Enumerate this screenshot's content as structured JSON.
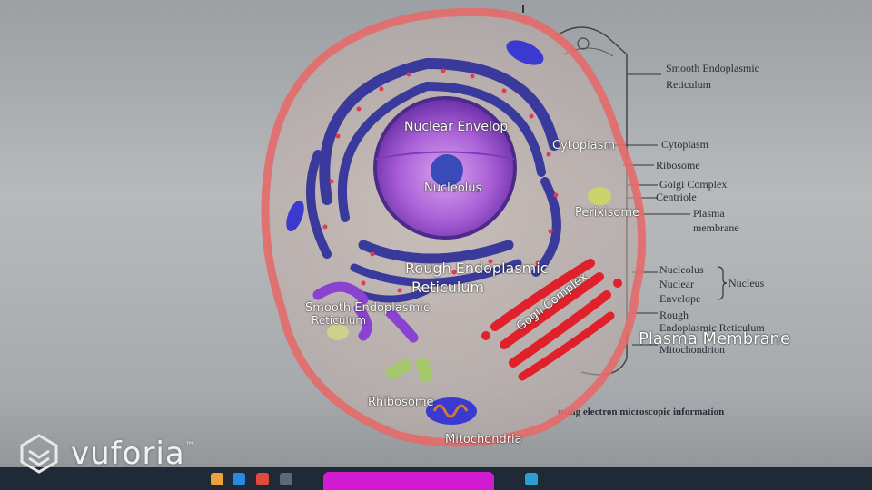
{
  "textbook": {
    "labels": [
      "Smooth Endoplasmic",
      "Reticulum",
      "Cytoplasm",
      "Ribosome",
      "Golgi Complex",
      "Centriole",
      "Plasma",
      "membrane",
      "Nucleolus",
      "Nuclear",
      "Envelope",
      "Nucleus",
      "Rough",
      "Endoplasmic Reticulum",
      "Mitochondrion"
    ],
    "caption": "using electron microscopic information"
  },
  "ar_labels": {
    "nuclear_envelope": "Nuclear Envelop",
    "cytoplasm": "Cytoplasm",
    "nucleolus": "Nucleolus",
    "peroxisome": "Perixisome",
    "rough_er": "Rough Endoplasmic",
    "rough_er_2": "Reticulum",
    "smooth_er": "Smooth Endoplasmic",
    "smooth_er_2": "Reticulum",
    "golgi": "Gogli Complex",
    "plasma_membrane": "Plasma Membrane",
    "ribosome": "Rhibosome",
    "mitochondria": "Mitochondria"
  },
  "watermark": {
    "brand": "vuforia",
    "mark": "™"
  },
  "colors": {
    "membrane": "#e46a6a",
    "er": "#3a3a9c",
    "nucleus": "#a05ad6",
    "golgi": "#e0202a",
    "taskbar": "#1f2a36",
    "active_bar": "#d21bd0"
  }
}
